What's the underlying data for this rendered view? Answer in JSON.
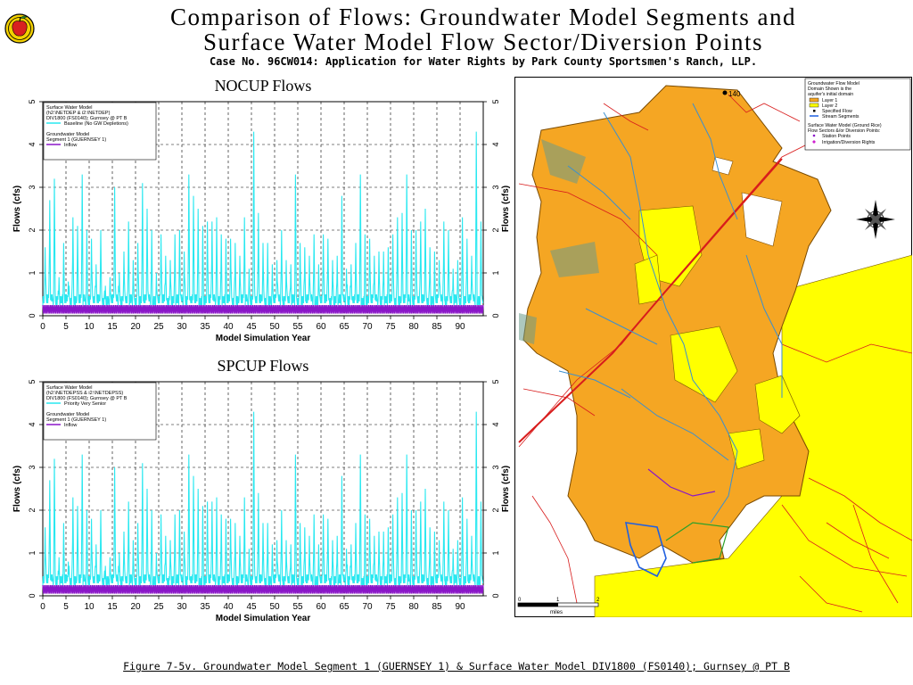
{
  "page": {
    "title_line1": "Comparison of Flows: Groundwater Model Segments and",
    "title_line2": "Surface Water Model Flow Sector/Diversion Points",
    "subtitle": "Case No. 96CW014: Application for Water Rights by Park County Sportsmen's Ranch, LLP.",
    "caption": "Figure 7-5v. Groundwater Model Segment 1 (GUERNSEY 1) & Surface Water Model DIV1800 (FS0140); Gurnsey @ PT B"
  },
  "colors": {
    "surface_flow": "#29e8f0",
    "inflow": "#8a16c8",
    "layer1": "#f5a623",
    "layer2": "#ffff00",
    "stream": "#3a8fd0",
    "road": "#d81c1c",
    "specified_flow": "#2060e0"
  },
  "chart_data": [
    {
      "type": "line",
      "title": "NOCUP Flows",
      "xlabel": "Model Simulation Year",
      "ylabel": "Flows (cfs)",
      "xlim": [
        0,
        95
      ],
      "ylim": [
        0,
        5
      ],
      "xticks": [
        0,
        5,
        10,
        15,
        20,
        25,
        30,
        35,
        40,
        45,
        50,
        55,
        60,
        65,
        70,
        75,
        80,
        85,
        90
      ],
      "yticks": [
        0,
        1,
        2,
        3,
        4,
        5
      ],
      "grid": true,
      "legend": {
        "position": "top-left",
        "sw_heading": [
          "Surface Water Model",
          "(h2:\\NETDEP & i2:\\NETDEP)",
          "DIV1800 (FS0140); Gurnsey @ PT B"
        ],
        "sw_entry": "Baseline (No GW Depletions)",
        "gw_heading": [
          "Groundwater Model",
          "Segment 1 (GUERNSEY 1)"
        ],
        "gw_entry": "Inflow"
      },
      "series": [
        {
          "name": "Baseline (No GW Depletions)",
          "annual_peaks": [
            1.6,
            2.7,
            3.2,
            0.9,
            1.7,
            0.8,
            2.3,
            2.1,
            3.3,
            2.0,
            1.8,
            1.2,
            2.0,
            0.7,
            0.9,
            3.0,
            1.0,
            1.5,
            2.2,
            1.3,
            1.7,
            3.1,
            2.5,
            2.0,
            1.0,
            1.9,
            1.4,
            1.3,
            1.9,
            2.0,
            1.5,
            3.3,
            2.8,
            2.5,
            2.1,
            2.2,
            2.2,
            2.3,
            1.9,
            1.8,
            1.8,
            1.7,
            1.4,
            2.3,
            1.1,
            4.3,
            2.4,
            1.7,
            1.7,
            1.2,
            1.3,
            2.0,
            1.3,
            1.2,
            3.3,
            1.7,
            1.6,
            1.4,
            1.9,
            1.2,
            1.9,
            1.8,
            1.3,
            1.4,
            2.8,
            1.1,
            1.2,
            1.7,
            3.3,
            1.9,
            1.8,
            1.4,
            1.5,
            1.5,
            1.6,
            1.9,
            2.3,
            2.4,
            3.3,
            2.0,
            2.0,
            2.2,
            2.5,
            1.6,
            1.5,
            1.3,
            2.2,
            2.0,
            1.1,
            1.3,
            2.3,
            1.8,
            1.4,
            4.3,
            2.2
          ],
          "base": 0.25
        },
        {
          "name": "Inflow",
          "values_range": [
            0.05,
            0.25
          ]
        }
      ]
    },
    {
      "type": "line",
      "title": "SPCUP Flows",
      "xlabel": "Model Simulation Year",
      "ylabel": "Flows (cfs)",
      "xlim": [
        0,
        95
      ],
      "ylim": [
        0,
        5
      ],
      "xticks": [
        0,
        5,
        10,
        15,
        20,
        25,
        30,
        35,
        40,
        45,
        50,
        55,
        60,
        65,
        70,
        75,
        80,
        85,
        90
      ],
      "yticks": [
        0,
        1,
        2,
        3,
        4,
        5
      ],
      "grid": true,
      "legend": {
        "position": "top-left",
        "sw_heading": [
          "Surface Water Model",
          "(h2:\\NETDEPSS & i2:\\NETDEPSS)",
          "DIV1800 (FS0140); Gurnsey @ PT B"
        ],
        "sw_entry": "Priority Very Senior",
        "gw_heading": [
          "Groundwater Model",
          "Segment 1 (GUERNSEY 1)"
        ],
        "gw_entry": "Inflow"
      },
      "series": [
        {
          "name": "Priority Very Senior",
          "annual_peaks": [
            1.6,
            2.7,
            3.2,
            0.9,
            1.7,
            0.8,
            2.3,
            2.1,
            3.3,
            2.0,
            1.8,
            1.2,
            2.0,
            0.7,
            0.9,
            3.0,
            1.0,
            1.5,
            2.2,
            1.3,
            1.7,
            3.1,
            2.5,
            2.0,
            1.0,
            1.9,
            1.4,
            1.3,
            1.9,
            2.0,
            1.5,
            3.3,
            2.8,
            2.5,
            2.1,
            2.2,
            2.2,
            2.3,
            1.9,
            1.8,
            1.8,
            1.7,
            1.4,
            2.3,
            1.1,
            4.3,
            2.4,
            1.7,
            1.7,
            1.2,
            1.3,
            2.0,
            1.3,
            1.2,
            3.3,
            1.7,
            1.6,
            1.4,
            1.9,
            1.2,
            1.9,
            1.8,
            1.3,
            1.4,
            2.8,
            1.1,
            1.2,
            1.7,
            3.3,
            1.9,
            1.8,
            1.4,
            1.5,
            1.5,
            1.6,
            1.9,
            2.3,
            2.4,
            3.3,
            2.0,
            2.0,
            2.2,
            2.5,
            1.6,
            1.5,
            1.3,
            2.2,
            2.0,
            1.1,
            1.3,
            2.3,
            1.8,
            1.4,
            4.3,
            2.2
          ],
          "base": 0.25
        },
        {
          "name": "Inflow",
          "values_range": [
            0.05,
            0.25
          ]
        }
      ]
    }
  ],
  "map": {
    "segment_label": "140",
    "legend": {
      "gw_heading": [
        "Groundwater Flow Model",
        "Domain Shown is the",
        "aquifer's initial domain"
      ],
      "items": [
        "Layer 1",
        "Layer 2",
        "Specified Flow",
        "Stream Segments"
      ],
      "sw_heading": [
        "Surface Water Model (Ground Rice)",
        "Flow Sectors &/or Diversion Points:"
      ],
      "sw_items": [
        "Station Points",
        "Irrigation/Diversion Rights"
      ]
    },
    "scale_labels": [
      "0",
      "1",
      "2"
    ],
    "scale_unit": "miles"
  }
}
